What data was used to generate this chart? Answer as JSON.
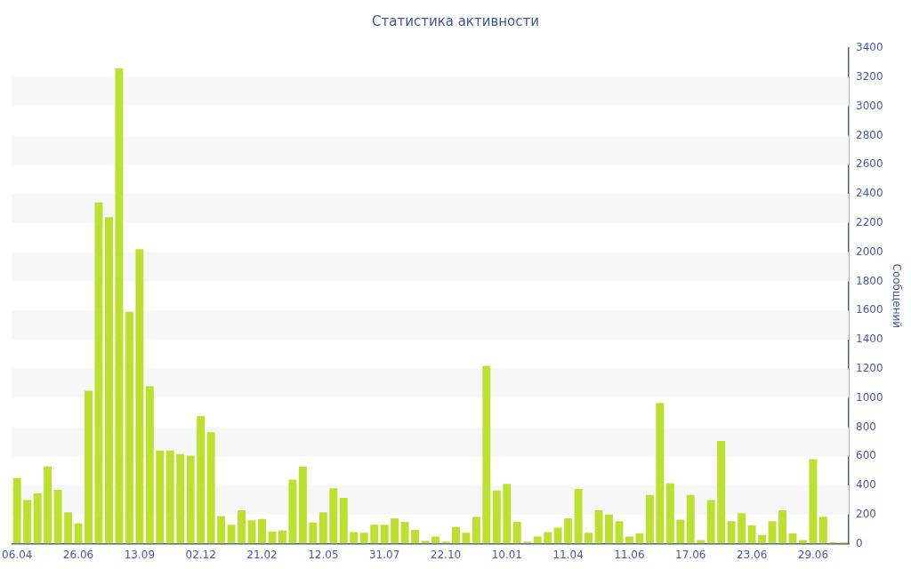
{
  "chart_data": {
    "type": "bar",
    "title": "Статистика активности",
    "y2label": "Сообщений",
    "categories": [
      "06.04",
      null,
      null,
      null,
      null,
      null,
      "26.06",
      null,
      null,
      null,
      null,
      null,
      "13.09",
      null,
      null,
      null,
      null,
      null,
      "02.12",
      null,
      null,
      null,
      null,
      null,
      "21.02",
      null,
      null,
      null,
      null,
      null,
      "12.05",
      null,
      null,
      null,
      null,
      null,
      "31.07",
      null,
      null,
      null,
      null,
      null,
      "22.10",
      null,
      null,
      null,
      null,
      null,
      "10.01",
      null,
      null,
      null,
      null,
      null,
      "11.04",
      null,
      null,
      null,
      null,
      null,
      "11.06",
      null,
      null,
      null,
      null,
      null,
      "17.06",
      null,
      null,
      null,
      null,
      null,
      "23.06",
      null,
      null,
      null,
      null,
      null,
      "29.06",
      null,
      null,
      null
    ],
    "series": [
      {
        "color": "#bde02f",
        "axis": "y2",
        "values": [
          450,
          300,
          345,
          530,
          370,
          215,
          140,
          1050,
          2340,
          2240,
          3260,
          1590,
          2020,
          1080,
          640,
          640,
          615,
          605,
          875,
          765,
          190,
          130,
          230,
          160,
          170,
          85,
          90,
          440,
          530,
          145,
          215,
          380,
          315,
          80,
          75,
          130,
          130,
          175,
          150,
          95,
          20,
          50,
          15,
          115,
          75,
          185,
          1220,
          365,
          410,
          150,
          15,
          50,
          80,
          110,
          175,
          375,
          75,
          230,
          200,
          155,
          50,
          70,
          335,
          965,
          415,
          165,
          335,
          25,
          300,
          705,
          155,
          210,
          125,
          60,
          155,
          230,
          70,
          25,
          580,
          185,
          10,
          10
        ]
      }
    ],
    "y2lim": [
      0,
      3400
    ],
    "y2ticks": [
      0,
      200,
      400,
      600,
      800,
      1000,
      1200,
      1400,
      1600,
      1800,
      2000,
      2200,
      2400,
      2600,
      2800,
      3000,
      3200,
      3400
    ],
    "bands": [
      {
        "axis": "y2",
        "from": 200,
        "to": 400,
        "color": "#f7f7f7"
      },
      {
        "axis": "y2",
        "from": 600,
        "to": 800,
        "color": "#f7f7f7"
      },
      {
        "axis": "y2",
        "from": 1000,
        "to": 1200,
        "color": "#f7f7f7"
      },
      {
        "axis": "y2",
        "from": 1400,
        "to": 1600,
        "color": "#f7f7f7"
      },
      {
        "axis": "y2",
        "from": 1800,
        "to": 2000,
        "color": "#f7f7f7"
      },
      {
        "axis": "y2",
        "from": 2200,
        "to": 2400,
        "color": "#f7f7f7"
      },
      {
        "axis": "y2",
        "from": 2600,
        "to": 2800,
        "color": "#f7f7f7"
      },
      {
        "axis": "y2",
        "from": 3000,
        "to": 3200,
        "color": "#f7f7f7"
      }
    ],
    "legend": false
  }
}
